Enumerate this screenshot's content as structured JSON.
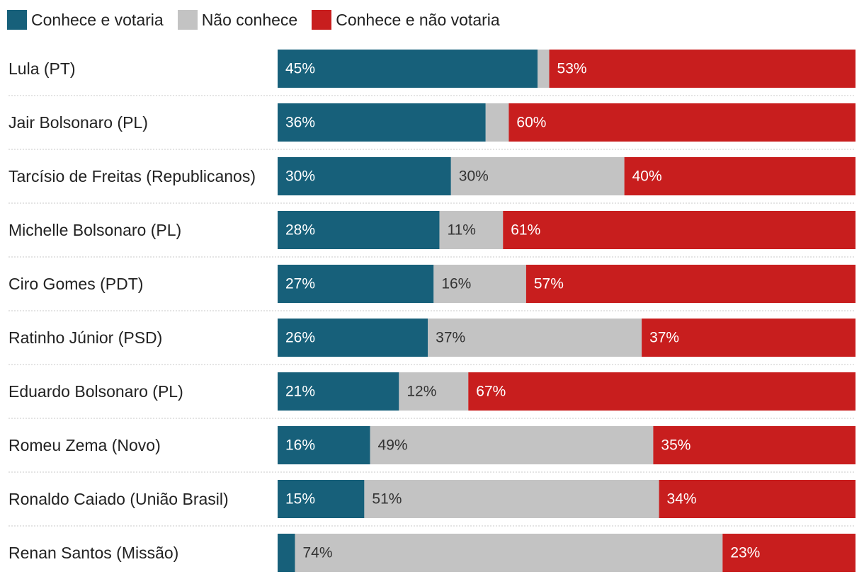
{
  "colors": {
    "vote": "#17607a",
    "unknown": "#c3c3c3",
    "reject": "#c81e1e",
    "label_on_dark": "#ffffff",
    "label_on_light": "#333333",
    "separator": "#c8c8c8"
  },
  "chart_data": {
    "type": "bar",
    "orientation": "horizontal",
    "stacked": true,
    "normalized": true,
    "xlim": [
      0,
      100
    ],
    "unit": "%",
    "legend_position": "top-left",
    "categories": [
      "Lula (PT)",
      "Jair Bolsonaro (PL)",
      "Tarcísio de Freitas (Republicanos)",
      "Michelle Bolsonaro (PL)",
      "Ciro Gomes (PDT)",
      "Ratinho Júnior (PSD)",
      "Eduardo Bolsonaro (PL)",
      "Romeu Zema (Novo)",
      "Ronaldo Caiado (União Brasil)",
      "Renan Santos (Missão)"
    ],
    "series": [
      {
        "name": "Conhece e votaria",
        "color_key": "vote",
        "values": [
          45,
          36,
          30,
          28,
          27,
          26,
          21,
          16,
          15,
          3
        ],
        "labels": [
          "45%",
          "36%",
          "30%",
          "28%",
          "27%",
          "26%",
          "21%",
          "16%",
          "15%",
          ""
        ]
      },
      {
        "name": "Não conhece",
        "color_key": "unknown",
        "values": [
          2,
          4,
          30,
          11,
          16,
          37,
          12,
          49,
          51,
          74
        ],
        "labels": [
          "",
          "",
          "30%",
          "11%",
          "16%",
          "37%",
          "12%",
          "49%",
          "51%",
          "74%"
        ]
      },
      {
        "name": "Conhece e não votaria",
        "color_key": "reject",
        "values": [
          53,
          60,
          40,
          61,
          57,
          37,
          67,
          35,
          34,
          23
        ],
        "labels": [
          "53%",
          "60%",
          "40%",
          "61%",
          "57%",
          "37%",
          "67%",
          "35%",
          "34%",
          "23%"
        ]
      }
    ]
  }
}
